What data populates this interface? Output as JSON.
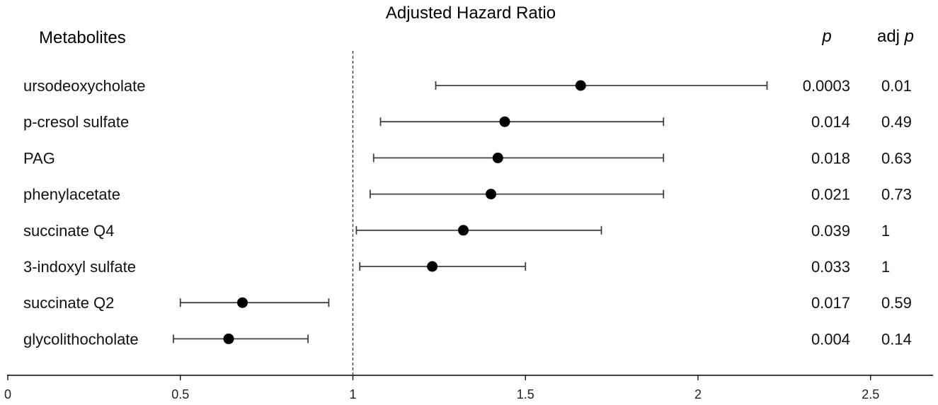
{
  "chart_data": {
    "type": "forest",
    "title": "Adjusted Hazard Ratio",
    "label_header": "Metabolites",
    "p_header": "p",
    "adjp_header_prefix": "adj ",
    "adjp_header_italic": "p",
    "xlim": [
      0,
      2.7
    ],
    "reference_line": 1,
    "xticks": [
      "0",
      "0.5",
      "1",
      "1.5",
      "2",
      "2.5"
    ],
    "xtick_values": [
      0,
      0.5,
      1,
      1.5,
      2,
      2.5
    ],
    "rows": [
      {
        "name": "ursodeoxycholate",
        "hr": 1.66,
        "lower": 1.24,
        "upper": 2.2,
        "p": "0.0003",
        "adj_p": "0.01"
      },
      {
        "name": "p-cresol sulfate",
        "hr": 1.44,
        "lower": 1.08,
        "upper": 1.9,
        "p": "0.014",
        "adj_p": "0.49"
      },
      {
        "name": "PAG",
        "hr": 1.42,
        "lower": 1.06,
        "upper": 1.9,
        "p": "0.018",
        "adj_p": "0.63"
      },
      {
        "name": "phenylacetate",
        "hr": 1.4,
        "lower": 1.05,
        "upper": 1.9,
        "p": "0.021",
        "adj_p": "0.73"
      },
      {
        "name": "succinate Q4",
        "hr": 1.32,
        "lower": 1.01,
        "upper": 1.72,
        "p": "0.039",
        "adj_p": "1"
      },
      {
        "name": "3-indoxyl sulfate",
        "hr": 1.23,
        "lower": 1.02,
        "upper": 1.5,
        "p": "0.033",
        "adj_p": "1"
      },
      {
        "name": "succinate Q2",
        "hr": 0.68,
        "lower": 0.5,
        "upper": 0.93,
        "p": "0.017",
        "adj_p": "0.59"
      },
      {
        "name": "glycolithocholate",
        "hr": 0.64,
        "lower": 0.48,
        "upper": 0.87,
        "p": "0.004",
        "adj_p": "0.14"
      }
    ],
    "colors": {
      "marker": "#000000",
      "whisker": "#404040",
      "axis": "#000000",
      "reference": "#333333"
    }
  }
}
